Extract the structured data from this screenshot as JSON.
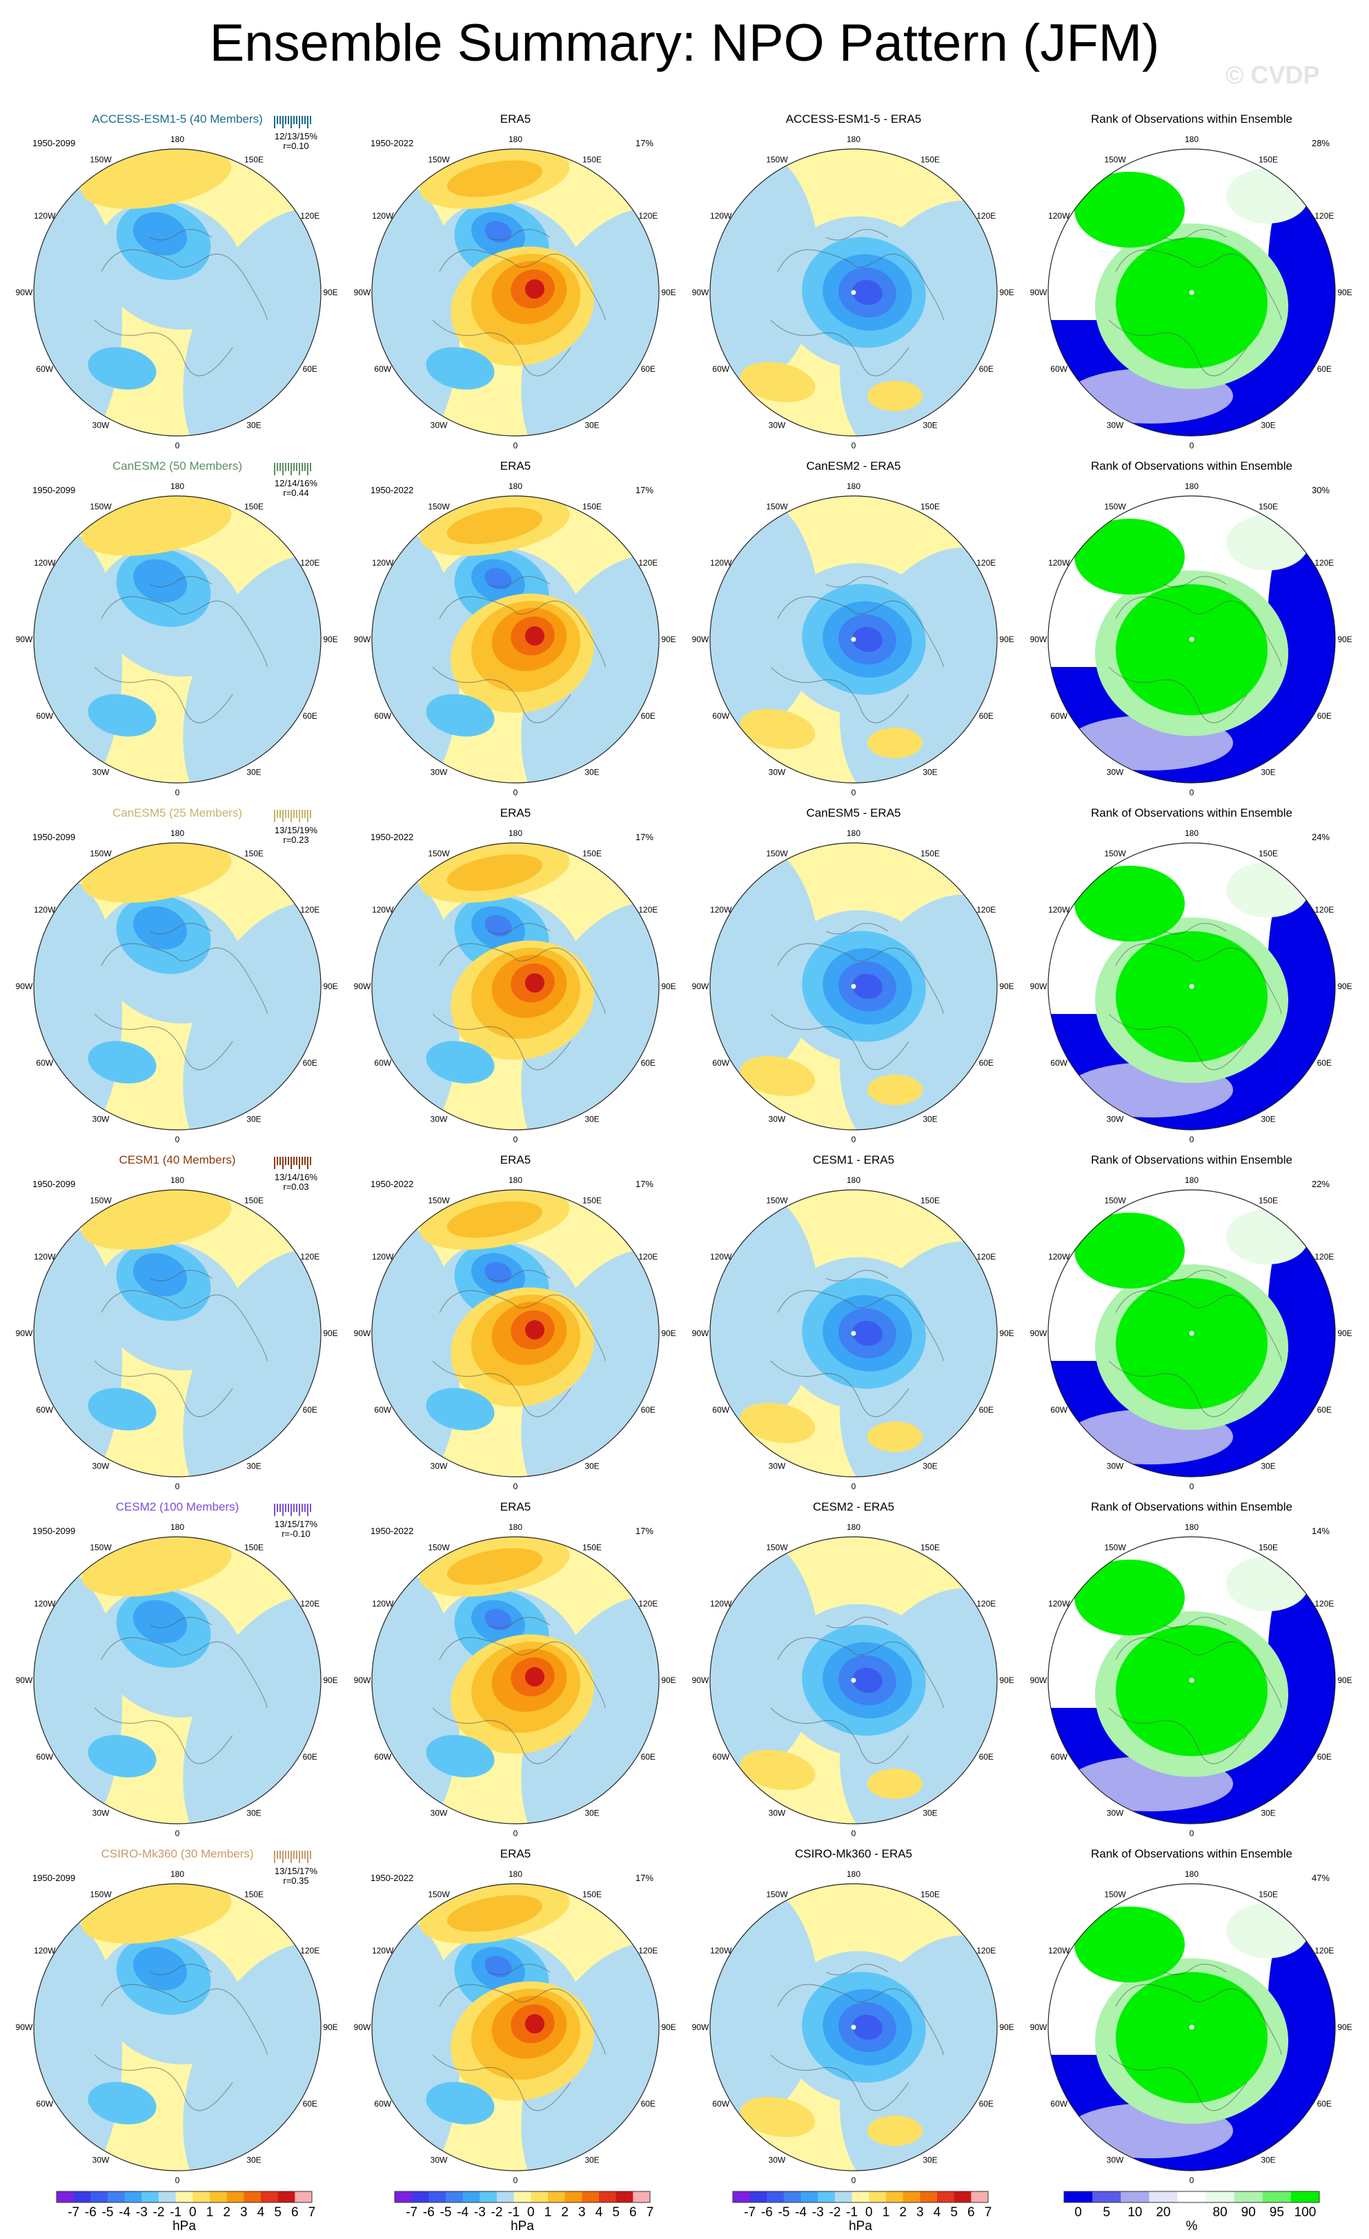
{
  "title": "Ensemble Summary: NPO Pattern (JFM)",
  "watermark": "© CVDP",
  "lon_labels": [
    "180",
    "150E",
    "120E",
    "90E",
    "60E",
    "30E",
    "0",
    "30W",
    "60W",
    "90W",
    "120W",
    "150W"
  ],
  "colors": {
    "neg": [
      "#7b1fe0",
      "#3a3ae8",
      "#3b5bf0",
      "#3f80f2",
      "#3ba4f5",
      "#5ec6f7",
      "#b3dcf1"
    ],
    "pos": [
      "#fff7a5",
      "#fde062",
      "#fbc02d",
      "#f89a10",
      "#f06a0c",
      "#e2351a",
      "#cb1616",
      "#f7aeb0"
    ],
    "rank": [
      "#0000e6",
      "#5a5ae8",
      "#a9a9ef",
      "#e4e4f8",
      "#ffffff",
      "#e7fbe7",
      "#aef2ae",
      "#66f266",
      "#00f000"
    ],
    "rows": [
      "#1a6b8c",
      "#5b8f65",
      "#c6b46a",
      "#8a3a10",
      "#7a4fe0",
      "#c89a6a"
    ]
  },
  "rows": [
    {
      "model": "ACCESS-ESM1-5",
      "model_title": "ACCESS-ESM1-5 (40 Members)",
      "period": "1950-2099",
      "pct": "12/13/15%",
      "r": "r=0.10",
      "era_pct": "17%",
      "rank_pct": "28%",
      "diff_title": "ACCESS-ESM1-5 - ERA5"
    },
    {
      "model": "CanESM2",
      "model_title": "CanESM2 (50 Members)",
      "period": "1950-2099",
      "pct": "12/14/16%",
      "r": "r=0.44",
      "era_pct": "17%",
      "rank_pct": "30%",
      "diff_title": "CanESM2 - ERA5"
    },
    {
      "model": "CanESM5",
      "model_title": "CanESM5 (25 Members)",
      "period": "1950-2099",
      "pct": "13/15/19%",
      "r": "r=0.23",
      "era_pct": "17%",
      "rank_pct": "24%",
      "diff_title": "CanESM5 - ERA5"
    },
    {
      "model": "CESM1",
      "model_title": "CESM1 (40 Members)",
      "period": "1950-2099",
      "pct": "13/14/16%",
      "r": "r=0.03",
      "era_pct": "17%",
      "rank_pct": "22%",
      "diff_title": "CESM1 - ERA5"
    },
    {
      "model": "CESM2",
      "model_title": "CESM2 (100 Members)",
      "period": "1950-2099",
      "pct": "13/15/17%",
      "r": "r=-0.10",
      "era_pct": "17%",
      "rank_pct": "14%",
      "diff_title": "CESM2 - ERA5"
    },
    {
      "model": "CSIRO-Mk360",
      "model_title": "CSIRO-Mk360 (30 Members)",
      "period": "1950-2099",
      "pct": "13/15/17%",
      "r": "r=0.35",
      "era_pct": "17%",
      "rank_pct": "47%",
      "diff_title": "CSIRO-Mk360 - ERA5"
    }
  ],
  "era": {
    "title": "ERA5",
    "period": "1950-2022"
  },
  "rank_title": "Rank of Observations within Ensemble",
  "colorbar": {
    "hpa_labels": [
      "-7",
      "-6",
      "-5",
      "-4",
      "-3",
      "-2",
      "-1",
      "0",
      "1",
      "2",
      "3",
      "4",
      "5",
      "6",
      "7"
    ],
    "hpa_unit": "hPa",
    "rank_labels": [
      "0",
      "5",
      "10",
      "20",
      "80",
      "90",
      "95",
      "100"
    ],
    "rank_unit": "%"
  }
}
